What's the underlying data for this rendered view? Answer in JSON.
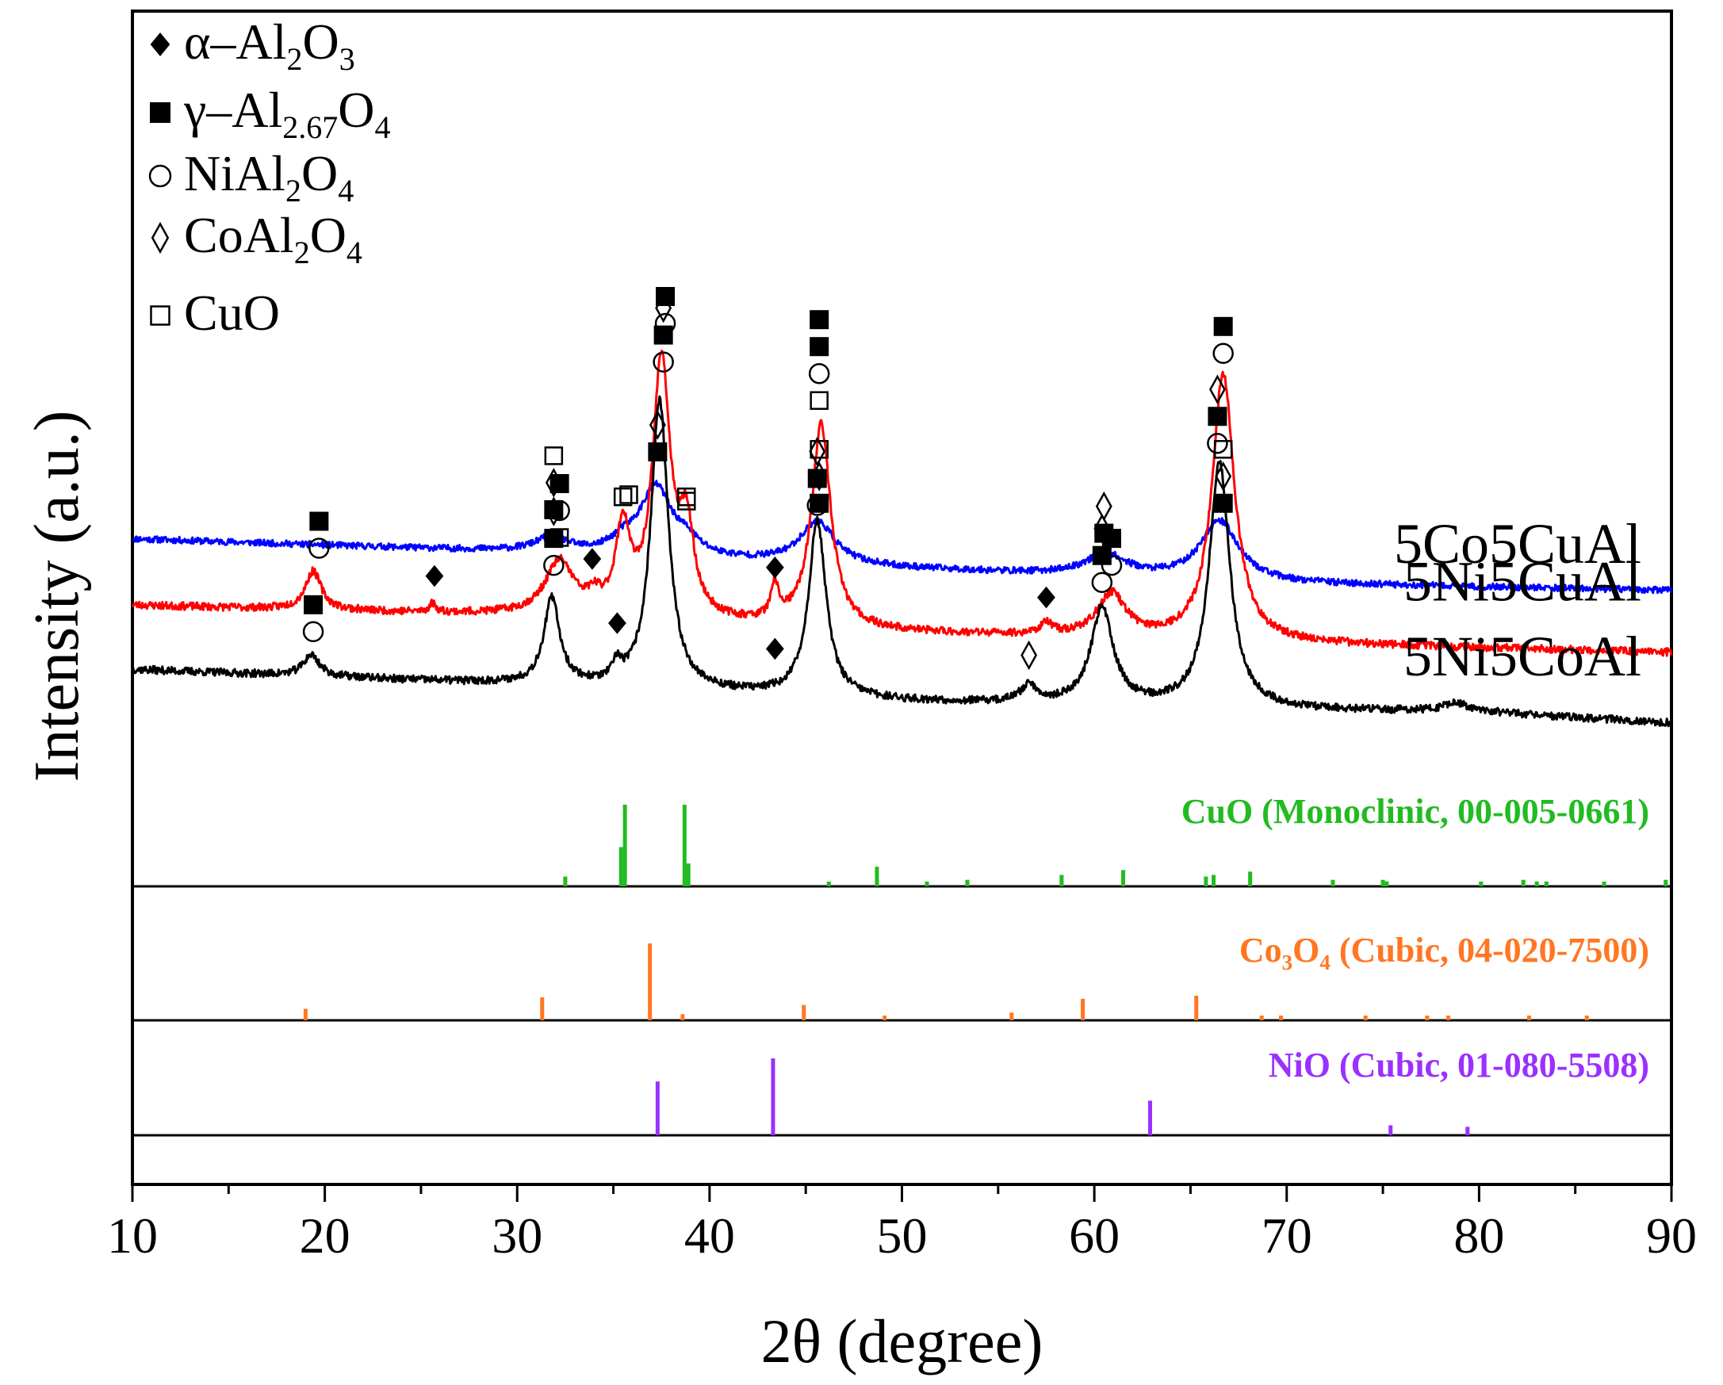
{
  "chart_data": {
    "type": "line",
    "xlabel": "2θ (degree)",
    "ylabel": "Intensity (a.u.)",
    "xlim": [
      10,
      90
    ],
    "xticks": [
      "10",
      "20",
      "30",
      "40",
      "50",
      "60",
      "70",
      "80",
      "90"
    ],
    "legend": {
      "position": "top-left",
      "entries": [
        {
          "symbol": "filled-diamond",
          "pre": "α–Al",
          "s1": "2",
          "mid": "O",
          "s2": "3"
        },
        {
          "symbol": "filled-square",
          "pre": "γ–Al",
          "s1": "2.67",
          "mid": "O",
          "s2": "4"
        },
        {
          "symbol": "open-circle",
          "pre": "NiAl",
          "s1": "2",
          "mid": "O",
          "s2": "4"
        },
        {
          "symbol": "open-diamond",
          "pre": "CoAl",
          "s1": "2",
          "mid": "O",
          "s2": "4"
        },
        {
          "symbol": "open-square",
          "pre": "CuO",
          "s1": "",
          "mid": "",
          "s2": ""
        }
      ]
    },
    "series": [
      {
        "name": "5Co5CuAl",
        "color": "#0000ff",
        "baseline": [
          [
            10,
            0.86
          ],
          [
            30,
            0.8
          ],
          [
            50,
            0.72
          ],
          [
            70,
            0.65
          ],
          [
            90,
            0.62
          ]
        ],
        "peaks": [
          [
            31.8,
            0.07,
            1.0
          ],
          [
            35.5,
            0.05,
            0.8
          ],
          [
            37.2,
            0.32,
            1.0
          ],
          [
            38.8,
            0.06,
            0.8
          ],
          [
            45.6,
            0.2,
            1.1
          ],
          [
            60.6,
            0.1,
            1.3
          ],
          [
            66.5,
            0.28,
            1.2
          ]
        ],
        "noise": 0.015,
        "seed": 11
      },
      {
        "name": "5Ni5CuAl",
        "color": "#ff0000",
        "baseline": [
          [
            10,
            0.55
          ],
          [
            30,
            0.5
          ],
          [
            50,
            0.42
          ],
          [
            70,
            0.37
          ],
          [
            90,
            0.33
          ]
        ],
        "peaks": [
          [
            19.4,
            0.18,
            0.5
          ],
          [
            25.6,
            0.04,
            0.2
          ],
          [
            32.2,
            0.25,
            0.9
          ],
          [
            34.0,
            0.06,
            0.4
          ],
          [
            35.5,
            0.4,
            0.45
          ],
          [
            37.5,
            1.2,
            0.55
          ],
          [
            38.8,
            0.4,
            0.45
          ],
          [
            43.4,
            0.15,
            0.25
          ],
          [
            45.8,
            0.95,
            0.6
          ],
          [
            57.5,
            0.05,
            0.4
          ],
          [
            60.9,
            0.2,
            0.9
          ],
          [
            66.7,
            1.25,
            0.7
          ]
        ],
        "noise": 0.018,
        "seed": 23
      },
      {
        "name": "5Ni5CoAl",
        "color": "#000000",
        "baseline": [
          [
            10,
            0.25
          ],
          [
            30,
            0.18
          ],
          [
            50,
            0.1
          ],
          [
            70,
            0.06
          ],
          [
            80,
            0.05
          ],
          [
            90,
            0.0
          ]
        ],
        "peaks": [
          [
            19.3,
            0.1,
            0.5
          ],
          [
            31.8,
            0.4,
            0.5
          ],
          [
            35.2,
            0.08,
            0.25
          ],
          [
            37.4,
            1.35,
            0.55
          ],
          [
            45.6,
            0.82,
            0.55
          ],
          [
            56.6,
            0.08,
            0.5
          ],
          [
            60.4,
            0.45,
            0.7
          ],
          [
            66.5,
            1.15,
            0.65
          ],
          [
            78.8,
            0.04,
            0.8
          ]
        ],
        "noise": 0.018,
        "seed": 37
      }
    ],
    "peak_markers": [
      {
        "x": 31.9,
        "y": 0.93,
        "stack": [
          "filled-square",
          "open-diamond",
          "open-square"
        ]
      },
      {
        "x": 35.8,
        "y": 1.0,
        "stack": [
          "open-square"
        ]
      },
      {
        "x": 37.3,
        "y": 1.2,
        "stack": [
          "filled-square",
          "open-diamond"
        ]
      },
      {
        "x": 38.8,
        "y": 0.97,
        "stack": [
          "open-square"
        ]
      },
      {
        "x": 45.7,
        "y": 0.96,
        "stack": [
          "filled-square",
          "open-diamond",
          "open-square"
        ]
      },
      {
        "x": 60.5,
        "y": 0.82,
        "stack": [
          "filled-square",
          "open-diamond"
        ]
      },
      {
        "x": 66.7,
        "y": 0.96,
        "stack": [
          "filled-square",
          "open-diamond",
          "open-square"
        ]
      },
      {
        "x": 19.7,
        "y": 0.75,
        "stack": [
          "open-circle",
          "filled-square"
        ]
      },
      {
        "x": 25.7,
        "y": 0.62,
        "stack": [
          "filled-diamond"
        ]
      },
      {
        "x": 32.2,
        "y": 0.8,
        "stack": [
          "open-square",
          "open-circle",
          "filled-square"
        ]
      },
      {
        "x": 33.9,
        "y": 0.7,
        "stack": [
          "filled-diamond"
        ]
      },
      {
        "x": 35.5,
        "y": 0.99,
        "stack": [
          "open-square"
        ]
      },
      {
        "x": 37.7,
        "y": 1.8,
        "stack": [
          "open-circle",
          "filled-square"
        ]
      },
      {
        "x": 38.8,
        "y": 0.99,
        "stack": [
          "open-square"
        ]
      },
      {
        "x": 43.4,
        "y": 0.66,
        "stack": [
          "filled-diamond"
        ]
      },
      {
        "x": 45.7,
        "y": 1.44,
        "stack": [
          "open-square",
          "open-circle",
          "filled-square",
          "filled-square"
        ]
      },
      {
        "x": 57.5,
        "y": 0.52,
        "stack": [
          "filled-diamond"
        ]
      },
      {
        "x": 60.9,
        "y": 0.67,
        "stack": [
          "open-circle",
          "filled-square"
        ]
      },
      {
        "x": 66.7,
        "y": 1.66,
        "stack": [
          "open-circle",
          "filled-square"
        ]
      },
      {
        "x": 19.4,
        "y": 0.36,
        "stack": [
          "open-circle",
          "filled-square"
        ]
      },
      {
        "x": 31.9,
        "y": 0.67,
        "stack": [
          "open-circle",
          "filled-square",
          "open-diamond"
        ]
      },
      {
        "x": 35.2,
        "y": 0.4,
        "stack": [
          "filled-diamond"
        ]
      },
      {
        "x": 37.6,
        "y": 1.62,
        "stack": [
          "open-circle",
          "filled-square",
          "open-diamond"
        ]
      },
      {
        "x": 43.4,
        "y": 0.28,
        "stack": [
          "filled-diamond"
        ]
      },
      {
        "x": 45.6,
        "y": 0.95,
        "stack": [
          "open-circle",
          "filled-square",
          "open-diamond"
        ]
      },
      {
        "x": 56.6,
        "y": 0.25,
        "stack": [
          "open-diamond"
        ]
      },
      {
        "x": 60.4,
        "y": 0.59,
        "stack": [
          "open-circle",
          "filled-square",
          "open-diamond"
        ]
      },
      {
        "x": 66.4,
        "y": 1.24,
        "stack": [
          "open-circle",
          "filled-square",
          "open-diamond"
        ]
      }
    ],
    "references": [
      {
        "label": "CuO (Monoclinic,  00-005-0661)",
        "color": "#22bb22",
        "lines": [
          [
            32.5,
            0.12
          ],
          [
            35.4,
            0.48
          ],
          [
            35.6,
            1.0
          ],
          [
            38.7,
            1.0
          ],
          [
            38.9,
            0.28
          ],
          [
            46.2,
            0.05
          ],
          [
            48.7,
            0.24
          ],
          [
            51.3,
            0.04
          ],
          [
            53.4,
            0.08
          ],
          [
            58.3,
            0.14
          ],
          [
            61.5,
            0.2
          ],
          [
            65.8,
            0.12
          ],
          [
            66.2,
            0.14
          ],
          [
            68.1,
            0.18
          ],
          [
            72.4,
            0.08
          ],
          [
            75.0,
            0.08
          ],
          [
            75.2,
            0.06
          ],
          [
            80.1,
            0.04
          ],
          [
            82.3,
            0.08
          ],
          [
            83.0,
            0.06
          ],
          [
            83.5,
            0.06
          ],
          [
            86.5,
            0.05
          ],
          [
            89.7,
            0.08
          ]
        ]
      },
      {
        "label_pre": "Co",
        "label_s1": "3",
        "label_mid": "O",
        "label_s2": "4",
        "label_post": " (Cubic, 04-020-7500)",
        "color": "#ff7722",
        "lines": [
          [
            19.0,
            0.15
          ],
          [
            31.3,
            0.3
          ],
          [
            36.9,
            1.0
          ],
          [
            38.6,
            0.08
          ],
          [
            44.9,
            0.2
          ],
          [
            49.1,
            0.03
          ],
          [
            55.7,
            0.1
          ],
          [
            59.4,
            0.28
          ],
          [
            65.3,
            0.32
          ],
          [
            68.7,
            0.02
          ],
          [
            69.7,
            0.02
          ],
          [
            74.1,
            0.03
          ],
          [
            77.3,
            0.06
          ],
          [
            78.4,
            0.03
          ],
          [
            82.6,
            0.04
          ],
          [
            85.6,
            0.03
          ]
        ]
      },
      {
        "label": "NiO (Cubic, 01-080-5508)",
        "color": "#9b30ff",
        "lines": [
          [
            37.3,
            0.7
          ],
          [
            43.3,
            1.0
          ],
          [
            62.9,
            0.45
          ],
          [
            75.4,
            0.13
          ],
          [
            79.4,
            0.11
          ]
        ]
      }
    ]
  }
}
